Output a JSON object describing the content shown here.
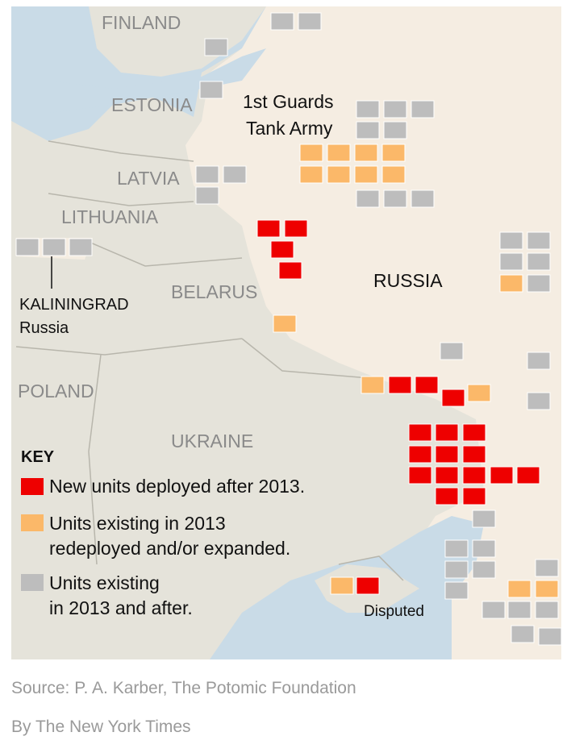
{
  "map": {
    "countries": [
      "FINLAND",
      "ESTONIA",
      "LATVIA",
      "LITHUANIA",
      "BELARUS",
      "POLAND",
      "UKRAINE",
      "RUSSIA"
    ],
    "kaliningrad": {
      "name": "KALININGRAD",
      "country": "Russia"
    },
    "army": [
      "1st Guards",
      "Tank Army"
    ],
    "disputed": "Disputed"
  },
  "key": {
    "title": "KEY",
    "items": [
      {
        "lines": [
          "New units deployed after 2013."
        ],
        "color": "#ee0000"
      },
      {
        "lines": [
          "Units existing in 2013",
          "redeployed and/or expanded."
        ],
        "color": "#fbb869"
      },
      {
        "lines": [
          "Units existing",
          "in 2013 and after."
        ],
        "color": "#bdbdbd"
      }
    ]
  },
  "footer": {
    "source": "Source: P. A. Karber, The Potomic Foundation",
    "byline": "By The New York Times"
  }
}
